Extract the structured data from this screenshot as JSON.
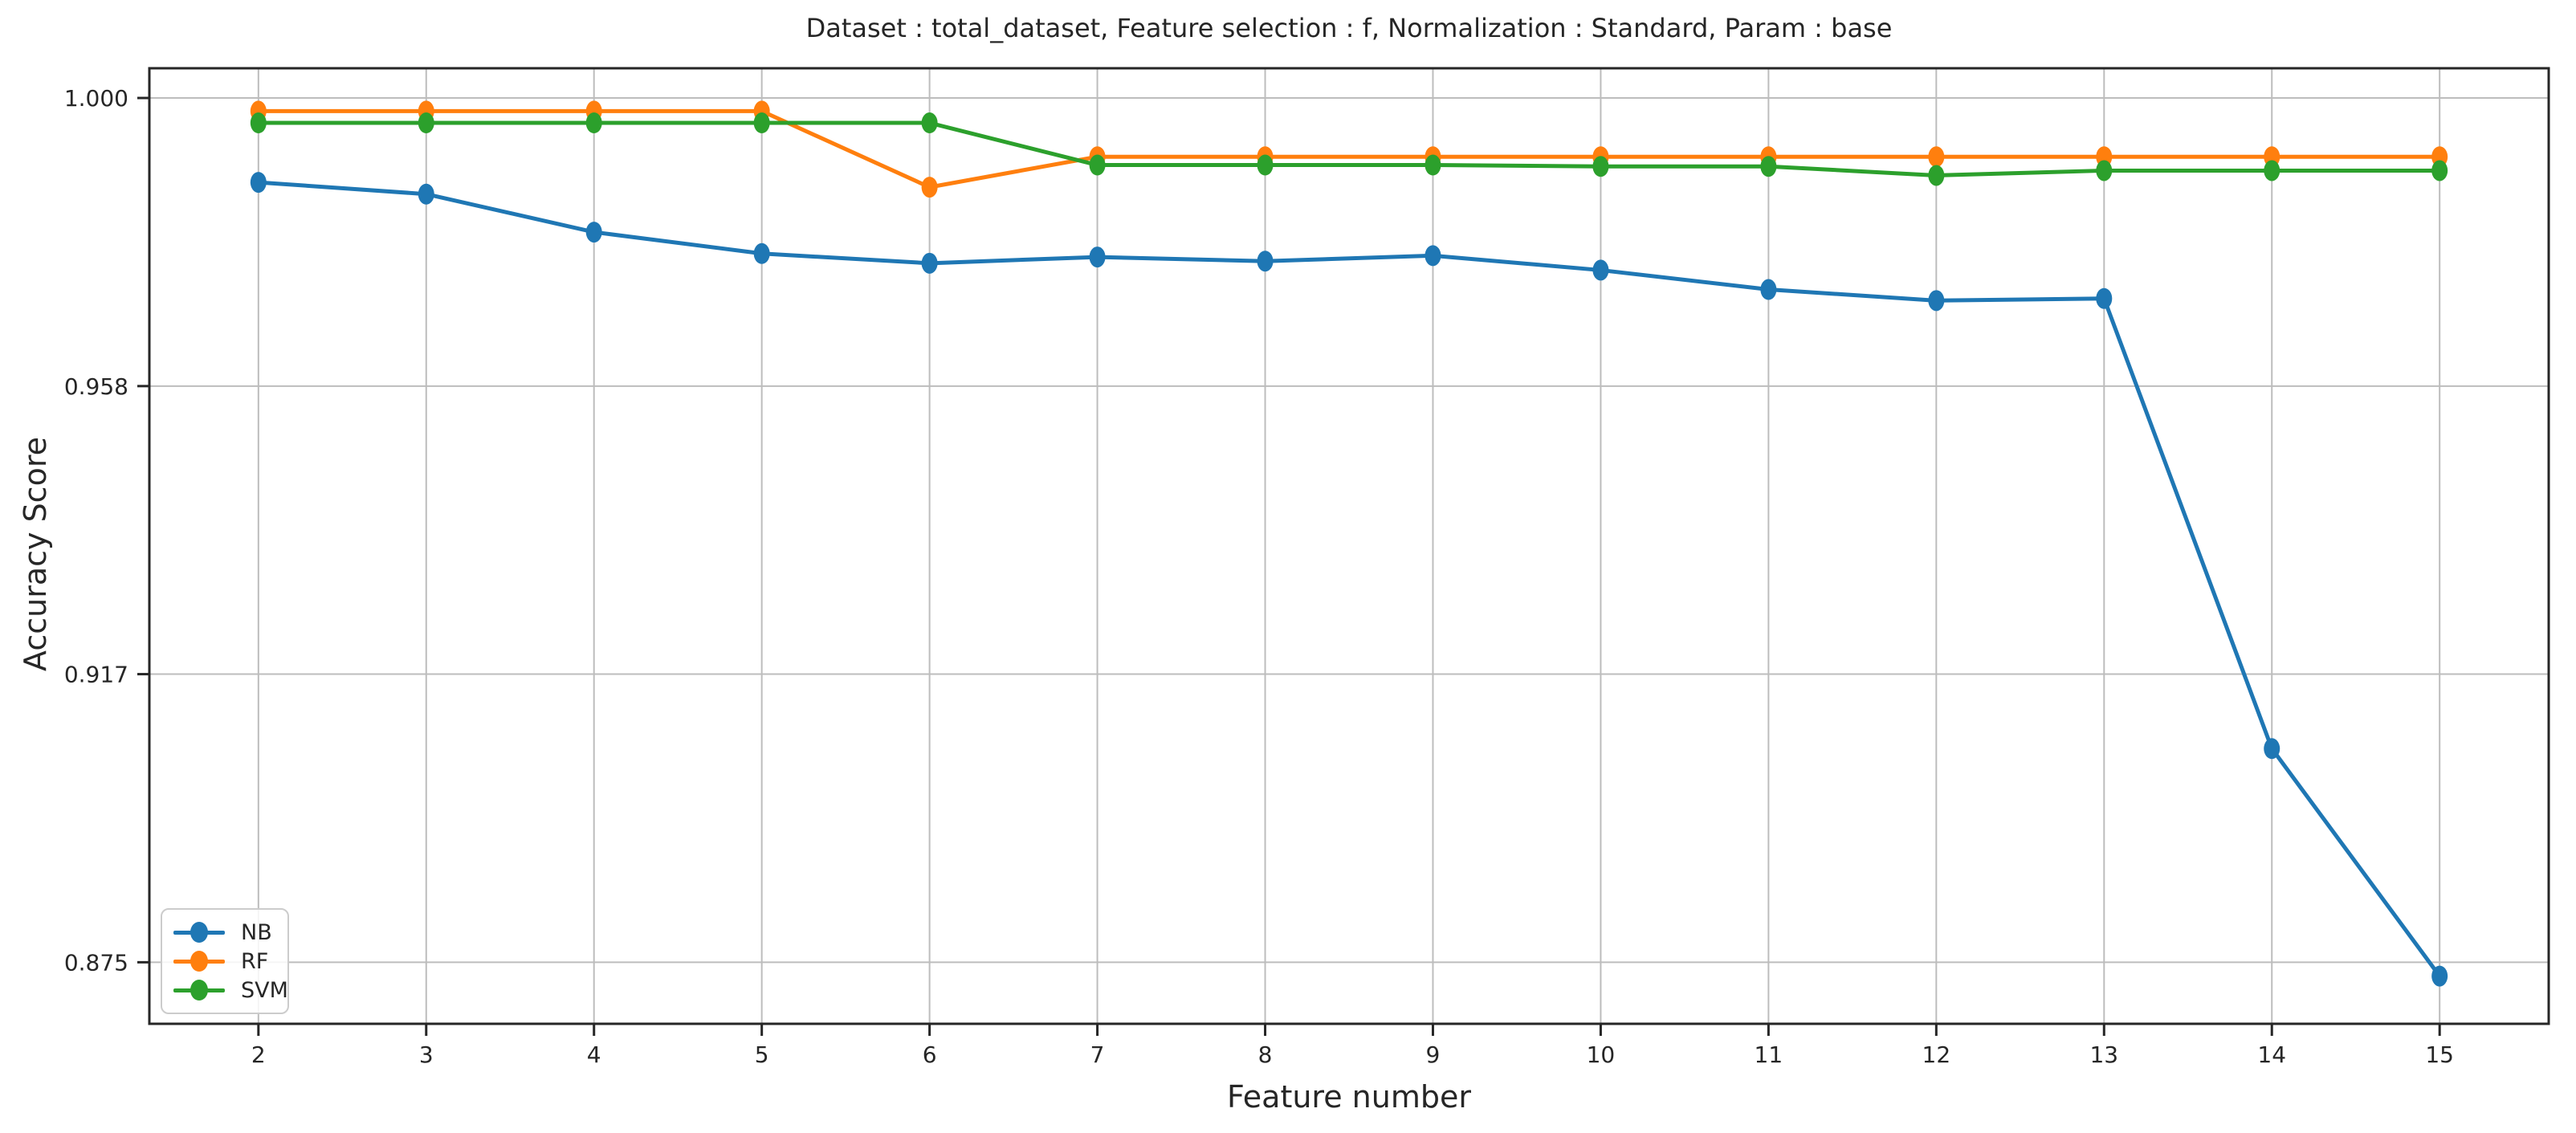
{
  "figure": {
    "title": "Dataset : total_dataset, Feature selection : f, Normalization : Standard, Param : base",
    "xlabel": "Feature number",
    "ylabel": "Accuracy Score"
  },
  "chart_data": {
    "type": "line",
    "title": "Dataset : total_dataset, Feature selection : f, Normalization : Standard, Param : base",
    "xlabel": "Feature number",
    "ylabel": "Accuracy Score",
    "x": [
      2,
      3,
      4,
      5,
      6,
      7,
      8,
      9,
      10,
      11,
      12,
      13,
      14,
      15
    ],
    "x_tick_labels": [
      "2",
      "3",
      "4",
      "5",
      "6",
      "7",
      "8",
      "9",
      "10",
      "11",
      "12",
      "13",
      "14",
      "15"
    ],
    "y_tick_values": [
      1.0,
      0.95833,
      0.91667,
      0.875
    ],
    "y_tick_labels": [
      "1.000",
      "0.958",
      "0.917",
      "0.875"
    ],
    "x_range": [
      1.35,
      15.65
    ],
    "y_range": [
      0.8661,
      1.0043
    ],
    "grid": true,
    "legend_position": "lower left",
    "grid_color": "#bdbdbd",
    "axis_color": "#262626",
    "series": [
      {
        "name": "NB",
        "color": "#1f77b4",
        "values": [
          0.9878,
          0.9861,
          0.9806,
          0.9775,
          0.9761,
          0.977,
          0.9764,
          0.9772,
          0.9751,
          0.9723,
          0.9707,
          0.971,
          0.9059,
          0.873
        ]
      },
      {
        "name": "RF",
        "color": "#ff7f0e",
        "values": [
          0.9981,
          0.9981,
          0.9981,
          0.9981,
          0.9871,
          0.9915,
          0.9915,
          0.9915,
          0.9915,
          0.9915,
          0.9915,
          0.9915,
          0.9915,
          0.9915
        ]
      },
      {
        "name": "SVM",
        "color": "#2ca02c",
        "values": [
          0.9964,
          0.9964,
          0.9964,
          0.9964,
          0.9964,
          0.9903,
          0.9903,
          0.9903,
          0.9901,
          0.9901,
          0.9888,
          0.9895,
          0.9895,
          0.9895
        ]
      }
    ]
  }
}
